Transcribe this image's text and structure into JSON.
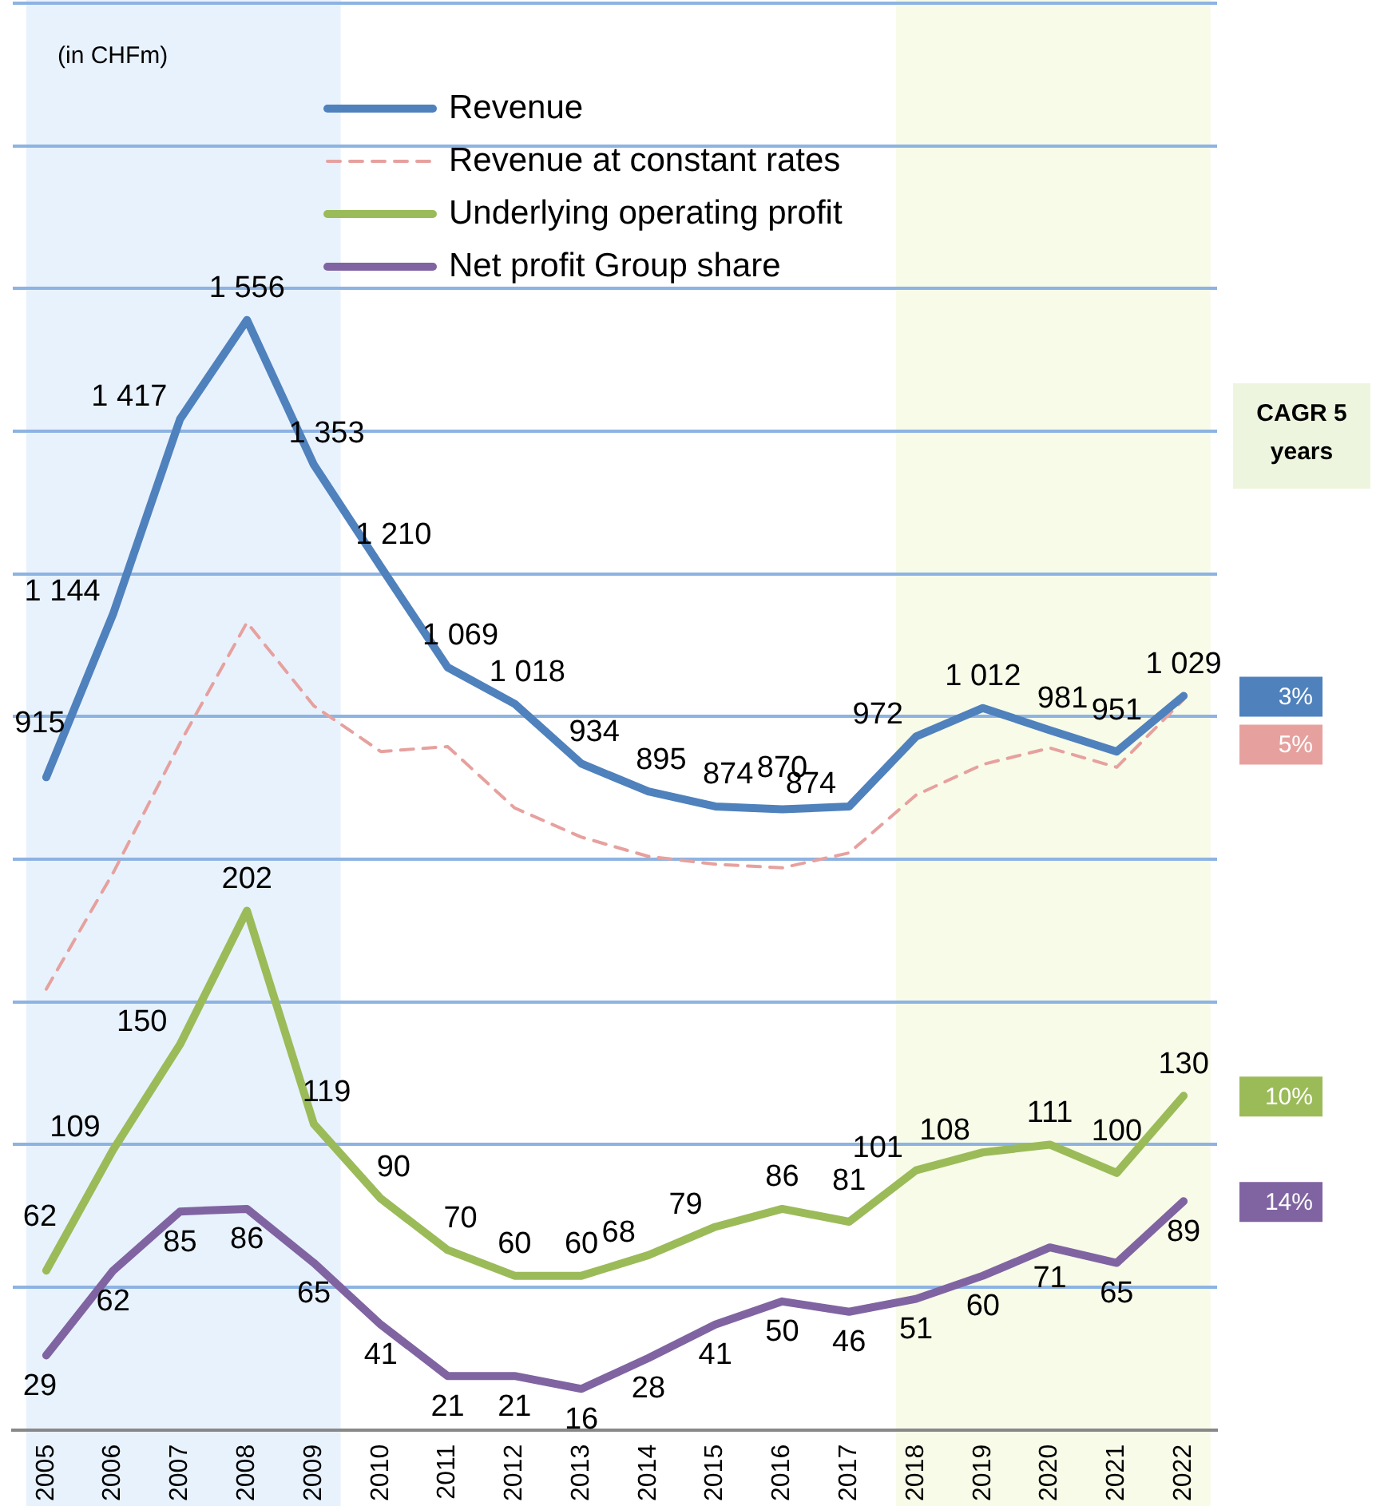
{
  "chart_data": {
    "type": "line",
    "categories": [
      "2005",
      "2006",
      "2007",
      "2008",
      "2009",
      "2010",
      "2011",
      "2012",
      "2013",
      "2014",
      "2015",
      "2016",
      "2017",
      "2018",
      "2019",
      "2020",
      "2021",
      "2022"
    ],
    "series": [
      {
        "name": "Revenue",
        "color": "#4f81bd",
        "axis": "y2",
        "values": [
          915,
          1144,
          1417,
          1556,
          1353,
          1210,
          1069,
          1018,
          934,
          895,
          874,
          870,
          874,
          972,
          1012,
          981,
          951,
          1029
        ]
      },
      {
        "name": "Revenue at constant rates",
        "color": "#e6a19e",
        "axis": "y2",
        "line_style": "dashed",
        "data_labels": false,
        "values": [
          618,
          781,
          963,
          1132,
          1015,
          951,
          958,
          872,
          831,
          804,
          793,
          788,
          809,
          890,
          933,
          956,
          929,
          1024
        ]
      },
      {
        "name": "Underlying operating profit",
        "color": "#9bbb59",
        "values": [
          62,
          109,
          150,
          202,
          119,
          90,
          70,
          60,
          60,
          68,
          79,
          86,
          81,
          101,
          108,
          111,
          100,
          130
        ]
      },
      {
        "name": "Net profit Group share",
        "color": "#8064a2",
        "values": [
          29,
          62,
          85,
          86,
          65,
          41,
          21,
          21,
          16,
          28,
          41,
          50,
          46,
          51,
          60,
          71,
          65,
          89
        ]
      }
    ],
    "ylim": [
      0,
      555
    ],
    "y2lim": [
      0,
      2000
    ],
    "y2ticks": [
      {
        "value": 0,
        "label": null
      },
      {
        "value": 200,
        "label": null
      },
      {
        "value": 400,
        "label": null
      },
      {
        "value": 600,
        "label": null
      },
      {
        "value": 800,
        "label": null
      },
      {
        "value": 1000,
        "label": null
      },
      {
        "value": 1200,
        "label": null
      },
      {
        "value": 1400,
        "label": null
      },
      {
        "value": 1600,
        "label": null
      },
      {
        "value": 1800,
        "label": null
      },
      {
        "value": 2000,
        "label": null
      }
    ],
    "tick_labels": "x",
    "grid": "y",
    "legend": "top",
    "data_labels": true,
    "line_style": "solid",
    "marker": "none",
    "bands": [
      {
        "axis": "x",
        "from": "2005",
        "to": "2009",
        "color": "#e8f2fd"
      },
      {
        "axis": "x",
        "from": "2018",
        "to": "2022",
        "color": "#f7fbe8"
      }
    ],
    "annotations": [
      "(in CHFm)",
      "CAGR 5 years",
      "3%",
      "5%",
      "10%",
      "14%"
    ]
  }
}
